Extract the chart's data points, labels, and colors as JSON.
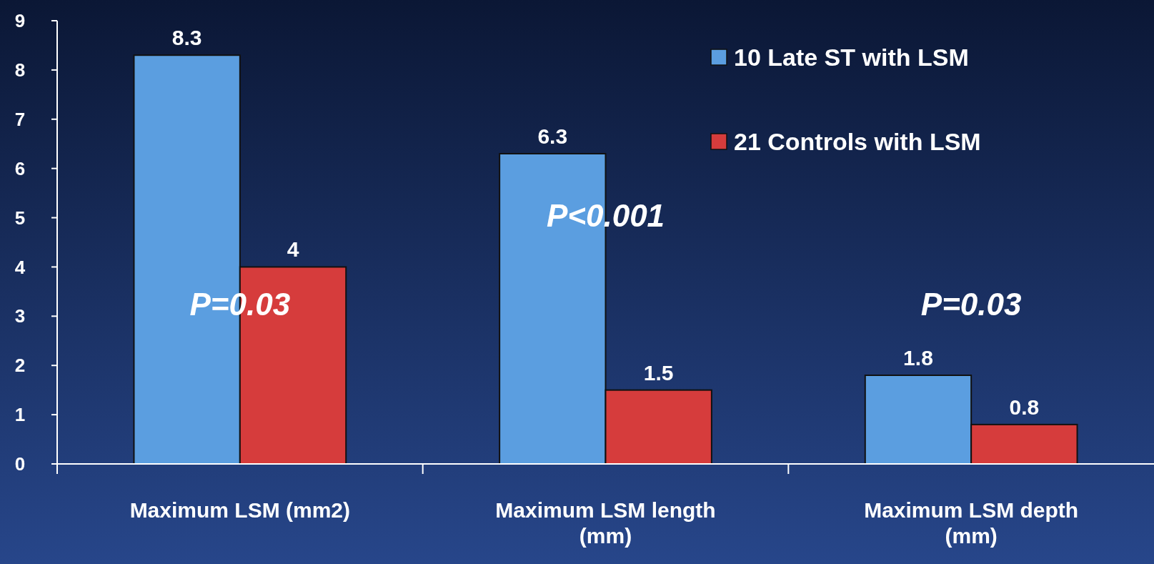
{
  "chart_data": {
    "type": "bar",
    "categories": [
      "Maximum LSM (mm2)",
      "Maximum LSM length (mm)",
      "Maximum LSM depth (mm)"
    ],
    "series": [
      {
        "name": "10 Late ST with LSM",
        "color": "#5b9ee0",
        "values": [
          8.3,
          6.3,
          1.8
        ]
      },
      {
        "name": "21 Controls with LSM",
        "color": "#d63c3c",
        "values": [
          4,
          1.5,
          0.8
        ]
      }
    ],
    "ylim": [
      0,
      9
    ],
    "yticks": [
      0,
      1,
      2,
      3,
      4,
      5,
      6,
      7,
      8,
      9
    ],
    "data_labels": true,
    "legend": "top right",
    "annotations": [
      "P=0.03",
      "P<0.001",
      "P=0.03"
    ]
  }
}
